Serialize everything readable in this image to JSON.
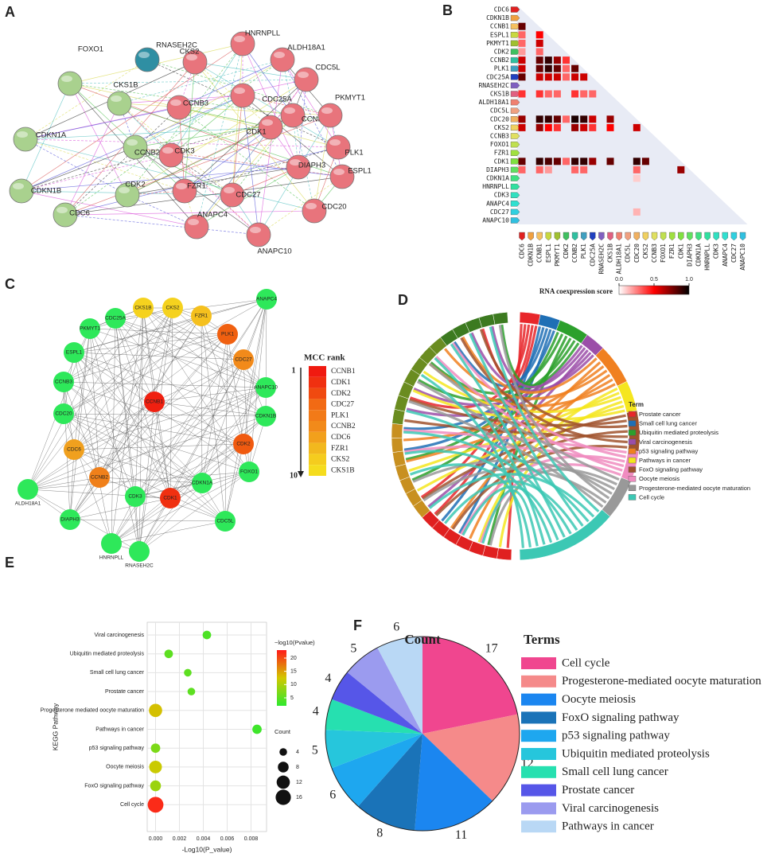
{
  "panel_labels": [
    "A",
    "B",
    "C",
    "D",
    "E",
    "F"
  ],
  "panel_a": {
    "nodes": [
      {
        "label": "RNASEH2C",
        "color": "#2f8fa3"
      },
      {
        "label": "FOXO1",
        "color": "#a9d18e"
      },
      {
        "label": "CKS1B",
        "color": "#a9d18e"
      },
      {
        "label": "CDKN1A",
        "color": "#a9d18e"
      },
      {
        "label": "CDKN1B",
        "color": "#a9d18e"
      },
      {
        "label": "CDC6",
        "color": "#a9d18e"
      },
      {
        "label": "CDK2",
        "color": "#a9d18e"
      },
      {
        "label": "CCNB2",
        "color": "#a9d18e"
      },
      {
        "label": "CKS2",
        "color": "#e8747c"
      },
      {
        "label": "HNRNPLL",
        "color": "#e8747c"
      },
      {
        "label": "ALDH18A1",
        "color": "#e8747c"
      },
      {
        "label": "CDC5L",
        "color": "#e8747c"
      },
      {
        "label": "CDC25A",
        "color": "#e8747c"
      },
      {
        "label": "CCNB3",
        "color": "#e8747c"
      },
      {
        "label": "CCNB1",
        "color": "#e8747c"
      },
      {
        "label": "PKMYT1",
        "color": "#e8747c"
      },
      {
        "label": "CDK1",
        "color": "#e8747c"
      },
      {
        "label": "CDK3",
        "color": "#e8747c"
      },
      {
        "label": "PLK1",
        "color": "#e8747c"
      },
      {
        "label": "DIAPH3",
        "color": "#e8747c"
      },
      {
        "label": "ESPL1",
        "color": "#e8747c"
      },
      {
        "label": "FZR1",
        "color": "#e8747c"
      },
      {
        "label": "CDC27",
        "color": "#e8747c"
      },
      {
        "label": "CDC20",
        "color": "#e8747c"
      },
      {
        "label": "ANAPC4",
        "color": "#e8747c"
      },
      {
        "label": "ANAPC10",
        "color": "#e8747c"
      }
    ]
  },
  "panel_b": {
    "genes": [
      {
        "name": "CDC6",
        "color": "#e02020"
      },
      {
        "name": "CDKN1B",
        "color": "#f0a040"
      },
      {
        "name": "CCNB1",
        "color": "#f5c060"
      },
      {
        "name": "ESPL1",
        "color": "#c8d840"
      },
      {
        "name": "PKMYT1",
        "color": "#a0c030"
      },
      {
        "name": "CDK2",
        "color": "#40c060"
      },
      {
        "name": "CCNB2",
        "color": "#30c0a0"
      },
      {
        "name": "PLK1",
        "color": "#40a0c0"
      },
      {
        "name": "CDC25A",
        "color": "#2040c0"
      },
      {
        "name": "RNASEH2C",
        "color": "#8060c0"
      },
      {
        "name": "CKS1B",
        "color": "#e06080"
      },
      {
        "name": "ALDH18A1",
        "color": "#f08070"
      },
      {
        "name": "CDC5L",
        "color": "#f0a080"
      },
      {
        "name": "CDC20",
        "color": "#f0b060"
      },
      {
        "name": "CKS2",
        "color": "#f0d060"
      },
      {
        "name": "CCNB3",
        "color": "#e0e060"
      },
      {
        "name": "FOXO1",
        "color": "#c0e050"
      },
      {
        "name": "FZR1",
        "color": "#a0e040"
      },
      {
        "name": "CDK1",
        "color": "#80e040"
      },
      {
        "name": "DIAPH3",
        "color": "#60e060"
      },
      {
        "name": "CDKN1A",
        "color": "#40e080"
      },
      {
        "name": "HNRNPLL",
        "color": "#30e0a0"
      },
      {
        "name": "CDK3",
        "color": "#30e0c0"
      },
      {
        "name": "ANAPC4",
        "color": "#30e0d0"
      },
      {
        "name": "CDC27",
        "color": "#30d0e0"
      },
      {
        "name": "ANAPC10",
        "color": "#30c0e0"
      }
    ],
    "cells": [
      [
        2,
        0,
        0.8
      ],
      [
        3,
        0,
        0.3
      ],
      [
        3,
        2,
        0.5
      ],
      [
        4,
        0,
        0.3
      ],
      [
        4,
        2,
        0.6
      ],
      [
        5,
        0,
        0.2
      ],
      [
        5,
        2,
        0.3
      ],
      [
        6,
        0,
        0.6
      ],
      [
        6,
        2,
        0.8
      ],
      [
        6,
        3,
        0.9
      ],
      [
        6,
        4,
        0.7
      ],
      [
        6,
        5,
        0.4
      ],
      [
        7,
        0,
        0.6
      ],
      [
        7,
        2,
        0.8
      ],
      [
        7,
        3,
        0.9
      ],
      [
        7,
        4,
        0.8
      ],
      [
        7,
        5,
        0.3
      ],
      [
        7,
        6,
        0.8
      ],
      [
        8,
        0,
        0.8
      ],
      [
        8,
        2,
        0.6
      ],
      [
        8,
        3,
        0.6
      ],
      [
        8,
        4,
        0.6
      ],
      [
        8,
        5,
        0.3
      ],
      [
        8,
        6,
        0.6
      ],
      [
        8,
        7,
        0.6
      ],
      [
        10,
        0,
        0.4
      ],
      [
        10,
        2,
        0.4
      ],
      [
        10,
        3,
        0.3
      ],
      [
        10,
        4,
        0.3
      ],
      [
        10,
        6,
        0.4
      ],
      [
        10,
        7,
        0.3
      ],
      [
        10,
        8,
        0.3
      ],
      [
        13,
        0,
        0.7
      ],
      [
        13,
        2,
        0.9
      ],
      [
        13,
        3,
        0.9
      ],
      [
        13,
        4,
        0.8
      ],
      [
        13,
        5,
        0.3
      ],
      [
        13,
        6,
        0.95
      ],
      [
        13,
        7,
        0.9
      ],
      [
        13,
        8,
        0.6
      ],
      [
        13,
        10,
        0.7
      ],
      [
        14,
        0,
        0.6
      ],
      [
        14,
        2,
        0.7
      ],
      [
        14,
        3,
        0.5
      ],
      [
        14,
        4,
        0.4
      ],
      [
        14,
        6,
        0.7
      ],
      [
        14,
        7,
        0.6
      ],
      [
        14,
        8,
        0.4
      ],
      [
        14,
        10,
        0.5
      ],
      [
        14,
        13,
        0.6
      ],
      [
        18,
        0,
        0.8
      ],
      [
        18,
        2,
        0.9
      ],
      [
        18,
        3,
        0.85
      ],
      [
        18,
        4,
        0.8
      ],
      [
        18,
        5,
        0.3
      ],
      [
        18,
        6,
        0.9
      ],
      [
        18,
        7,
        0.9
      ],
      [
        18,
        8,
        0.7
      ],
      [
        18,
        10,
        0.8
      ],
      [
        18,
        13,
        0.9
      ],
      [
        18,
        14,
        0.8
      ],
      [
        19,
        0,
        0.3
      ],
      [
        19,
        2,
        0.3
      ],
      [
        19,
        3,
        0.2
      ],
      [
        19,
        6,
        0.3
      ],
      [
        19,
        7,
        0.3
      ],
      [
        19,
        13,
        0.3
      ],
      [
        19,
        18,
        0.7
      ],
      [
        20,
        13,
        0.1
      ],
      [
        24,
        13,
        0.15
      ]
    ],
    "colorbar": {
      "label": "RNA coexpression score",
      "colors": [
        "#ffffff",
        "#ff0000",
        "#000000"
      ],
      "lim": [
        0,
        1
      ],
      "ticks": [
        {
          "value": 0,
          "label": "0.0"
        },
        {
          "value": 0.5,
          "label": "0.5"
        },
        {
          "value": 1,
          "label": "1.0"
        }
      ]
    }
  },
  "panel_c": {
    "nodes": [
      {
        "label": "CKS1B",
        "color": "#f5d21e"
      },
      {
        "label": "CKS2",
        "color": "#f5d21e"
      },
      {
        "label": "FZR1",
        "color": "#f5c01e"
      },
      {
        "label": "ANAPC4",
        "color": "#2ee85a"
      },
      {
        "label": "CDC25A",
        "color": "#2ee85a"
      },
      {
        "label": "PKMYT1",
        "color": "#2ee85a"
      },
      {
        "label": "PLK1",
        "color": "#f06010"
      },
      {
        "label": "ESPL1",
        "color": "#2ee85a"
      },
      {
        "label": "CDC27",
        "color": "#f28a1a"
      },
      {
        "label": "ANAPC10",
        "color": "#2ee85a"
      },
      {
        "label": "CCNB3",
        "color": "#2ee85a"
      },
      {
        "label": "CDC20",
        "color": "#2ee85a"
      },
      {
        "label": "CDKN1B",
        "color": "#2ee85a"
      },
      {
        "label": "CCNB1",
        "color": "#f02010"
      },
      {
        "label": "CDC6",
        "color": "#f0a01e"
      },
      {
        "label": "CDK2",
        "color": "#f05a10"
      },
      {
        "label": "FOXO1",
        "color": "#2ee85a"
      },
      {
        "label": "ALDH18A1",
        "color": "#2ee85a"
      },
      {
        "label": "CCNB2",
        "color": "#f0801a"
      },
      {
        "label": "CDKN1A",
        "color": "#2ee85a"
      },
      {
        "label": "CDK3",
        "color": "#2ee85a"
      },
      {
        "label": "CDK1",
        "color": "#f03010"
      },
      {
        "label": "DIAPH3",
        "color": "#2ee85a"
      },
      {
        "label": "CDC5L",
        "color": "#2ee85a"
      },
      {
        "label": "HNRNPLL",
        "color": "#2ee85a"
      },
      {
        "label": "RNASEH2C",
        "color": "#2ee85a"
      }
    ],
    "legend_title": "MCC rank",
    "rank_start": "1",
    "rank_end": "10",
    "ranked": [
      "CCNB1",
      "CDK1",
      "CDK2",
      "CDC27",
      "PLK1",
      "CCNB2",
      "CDC6",
      "FZR1",
      "CKS2",
      "CKS1B"
    ],
    "rank_colors": [
      "#f01a10",
      "#f03010",
      "#f04a10",
      "#f26a14",
      "#f27a18",
      "#f28a1a",
      "#f2a01c",
      "#f2b81e",
      "#f5cc1e",
      "#f5dc1e"
    ]
  },
  "panel_d": {
    "legend_title": "Term",
    "terms": [
      {
        "name": "Prostate cancer",
        "color": "#e8262a"
      },
      {
        "name": "Small cell lung cancer",
        "color": "#1f6fb5"
      },
      {
        "name": "Ubiquitin mediated proteolysis",
        "color": "#2ca02c"
      },
      {
        "name": "Viral carcinogenesis",
        "color": "#9b4ea8"
      },
      {
        "name": "p53 signaling pathway",
        "color": "#f08020"
      },
      {
        "name": "Pathways in cancer",
        "color": "#f5e61e"
      },
      {
        "name": "FoxO signaling pathway",
        "color": "#a0522d"
      },
      {
        "name": "Oocyte meiosis",
        "color": "#f08cc0"
      },
      {
        "name": "Progesterone-mediated oocyte maturation",
        "color": "#999999"
      },
      {
        "name": "Cell cycle",
        "color": "#3cc8b4"
      }
    ]
  },
  "chart_data": [
    {
      "type": "bubble",
      "x_label": "-Log10(P_value)",
      "y_label": "KEGG Pathway",
      "categories": [
        "Viral carcinogenesis",
        "Ubiquitin mediated proteolysis",
        "Small cell lung cancer",
        "Prostate cancer",
        "Progesterone mediated oocyte maturation",
        "Pathways in cancer",
        "p53 signaling pathway",
        "Oocyte meiosis",
        "FoxO signaling pathway",
        "Cell cycle"
      ],
      "values": [
        0.0043,
        0.0011,
        0.0027,
        0.003,
        0,
        0.0085,
        0,
        0,
        0,
        0
      ],
      "sizes": [
        5,
        5,
        4,
        4,
        12,
        6,
        6,
        11,
        8,
        17
      ],
      "color_values": [
        4,
        5,
        5,
        5,
        13,
        3,
        7,
        12,
        9,
        22
      ],
      "xlim": [
        -0.0007,
        0.0093
      ],
      "xticks": [
        {
          "value": 0,
          "label": "0.000"
        },
        {
          "value": 0.002,
          "label": "0.002"
        },
        {
          "value": 0.004,
          "label": "0.004"
        },
        {
          "value": 0.006,
          "label": "0.006"
        },
        {
          "value": 0.008,
          "label": "0.008"
        }
      ],
      "grid": true,
      "colorbar": {
        "title": "−log10(Pvalue)",
        "lim": [
          2,
          23
        ],
        "ticks": [
          5,
          10,
          15,
          20
        ],
        "colors": [
          "#2ee82e",
          "#d2c800",
          "#ff1a1a"
        ]
      },
      "size_legend": {
        "title": "Count",
        "values": [
          4,
          8,
          12,
          16
        ]
      }
    },
    {
      "type": "pie",
      "title": "Count",
      "legend_title": "Terms",
      "categories": [
        "Cell cycle",
        "Progesterone-mediated oocyte maturation",
        "Oocyte meiosis",
        "FoxO signaling pathway",
        "p53 signaling pathway",
        "Ubiquitin mediated proteolysis",
        "Small cell lung cancer",
        "Prostate cancer",
        "Viral carcinogenesis",
        "Pathways in cancer"
      ],
      "values": [
        17,
        12,
        11,
        8,
        6,
        5,
        4,
        4,
        5,
        6
      ],
      "colors": [
        "#f0468f",
        "#f58a8a",
        "#1b86f0",
        "#1a73b8",
        "#1ea7ef",
        "#26c6dc",
        "#26e0b0",
        "#5656e8",
        "#9b9bef",
        "#b9d8f5"
      ]
    }
  ]
}
